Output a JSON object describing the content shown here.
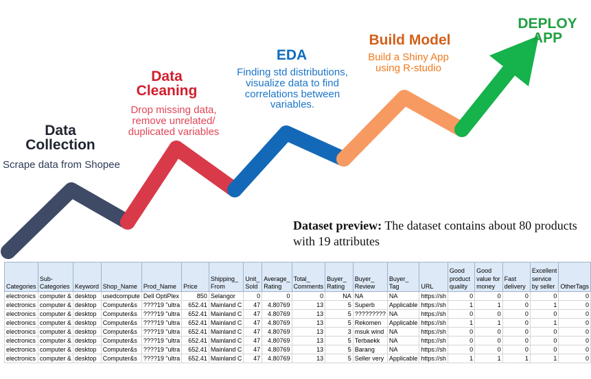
{
  "stages": {
    "collection": {
      "title": "Data\nCollection",
      "desc": "Scrape data from Shopee",
      "color": "#3f4a66"
    },
    "cleaning": {
      "title": "Data\nCleaning",
      "desc": "Drop missing data,\nremove unrelated/\nduplicated variables",
      "color": "#d93a4a"
    },
    "eda": {
      "title": "EDA",
      "desc": "Finding std distributions,\nvisualize data to find\ncorrelations between\nvariables.",
      "color": "#1369b8"
    },
    "build": {
      "title": "Build Model",
      "desc": "Build a Shiny App\nusing R-studio",
      "color": "#f79a62"
    },
    "deploy": {
      "title": "DEPLOY\nAPP",
      "color": "#16b24b"
    }
  },
  "preview": {
    "bold": "Dataset preview:",
    "text": " The dataset contains about 80 products with 19 attributes"
  },
  "table": {
    "headers": [
      "Categories",
      "Sub-\nCategories",
      "Keyword",
      "Shop_Name",
      "Prod_Name",
      "Price",
      "Shipping_\nFrom",
      "Unit_\nSold",
      "Average_\nRating",
      "Total_\nComments",
      "Buyer_\nRating",
      "Buyer_\nReview",
      "Buyer_\nTag",
      "URL",
      "Good\nproduct\nquality",
      "Good\nvalue for\nmoney",
      "Fast\ndelivery",
      "Excellent\nservice\nby seller",
      "OtherTags"
    ],
    "rows": [
      [
        "electronics",
        "computer &",
        "desktop",
        "usedcompute",
        "Dell OptiPlex",
        "850",
        "Selangor",
        "0",
        "0",
        "0",
        "NA",
        "NA",
        "NA",
        "https://sh",
        "0",
        "0",
        "0",
        "0",
        "0"
      ],
      [
        "electronics",
        "computer &",
        "desktop",
        "Computer&s",
        "????19 \"ultra",
        "652.41",
        "Mainland C",
        "47",
        "4.80769",
        "13",
        "5",
        "Superb",
        "Applicable",
        "https://sh",
        "1",
        "1",
        "0",
        "1",
        "0"
      ],
      [
        "electronics",
        "computer &",
        "desktop",
        "Computer&s",
        "????19 \"ultra",
        "652.41",
        "Mainland C",
        "47",
        "4.80769",
        "13",
        "5",
        "?????????",
        "NA",
        "https://sh",
        "0",
        "0",
        "0",
        "0",
        "0"
      ],
      [
        "electronics",
        "computer &",
        "desktop",
        "Computer&s",
        "????19 \"ultra",
        "652.41",
        "Mainland C",
        "47",
        "4.80769",
        "13",
        "5",
        "Rekomen",
        "Applicable",
        "https://sh",
        "1",
        "1",
        "0",
        "1",
        "0"
      ],
      [
        "electronics",
        "computer &",
        "desktop",
        "Computer&s",
        "????19 \"ultra",
        "652.41",
        "Mainland C",
        "47",
        "4.80769",
        "13",
        "3",
        "msuk wind",
        "NA",
        "https://sh",
        "0",
        "0",
        "0",
        "0",
        "0"
      ],
      [
        "electronics",
        "computer &",
        "desktop",
        "Computer&s",
        "????19 \"ultra",
        "652.41",
        "Mainland C",
        "47",
        "4.80769",
        "13",
        "5",
        "Terbaekk",
        "NA",
        "https://sh",
        "0",
        "0",
        "0",
        "0",
        "0"
      ],
      [
        "electronics",
        "computer &",
        "desktop",
        "Computer&s",
        "????19 \"ultra",
        "652.41",
        "Mainland C",
        "47",
        "4.80769",
        "13",
        "5",
        "Barang",
        "NA",
        "https://sh",
        "0",
        "0",
        "0",
        "0",
        "0"
      ],
      [
        "electronics",
        "computer &",
        "desktop",
        "Computer&s",
        "????19 \"ultra",
        "652.41",
        "Mainland C",
        "47",
        "4.80769",
        "13",
        "5",
        "Seller very",
        "Applicable",
        "https://sh",
        "1",
        "1",
        "1",
        "1",
        "0"
      ]
    ]
  }
}
